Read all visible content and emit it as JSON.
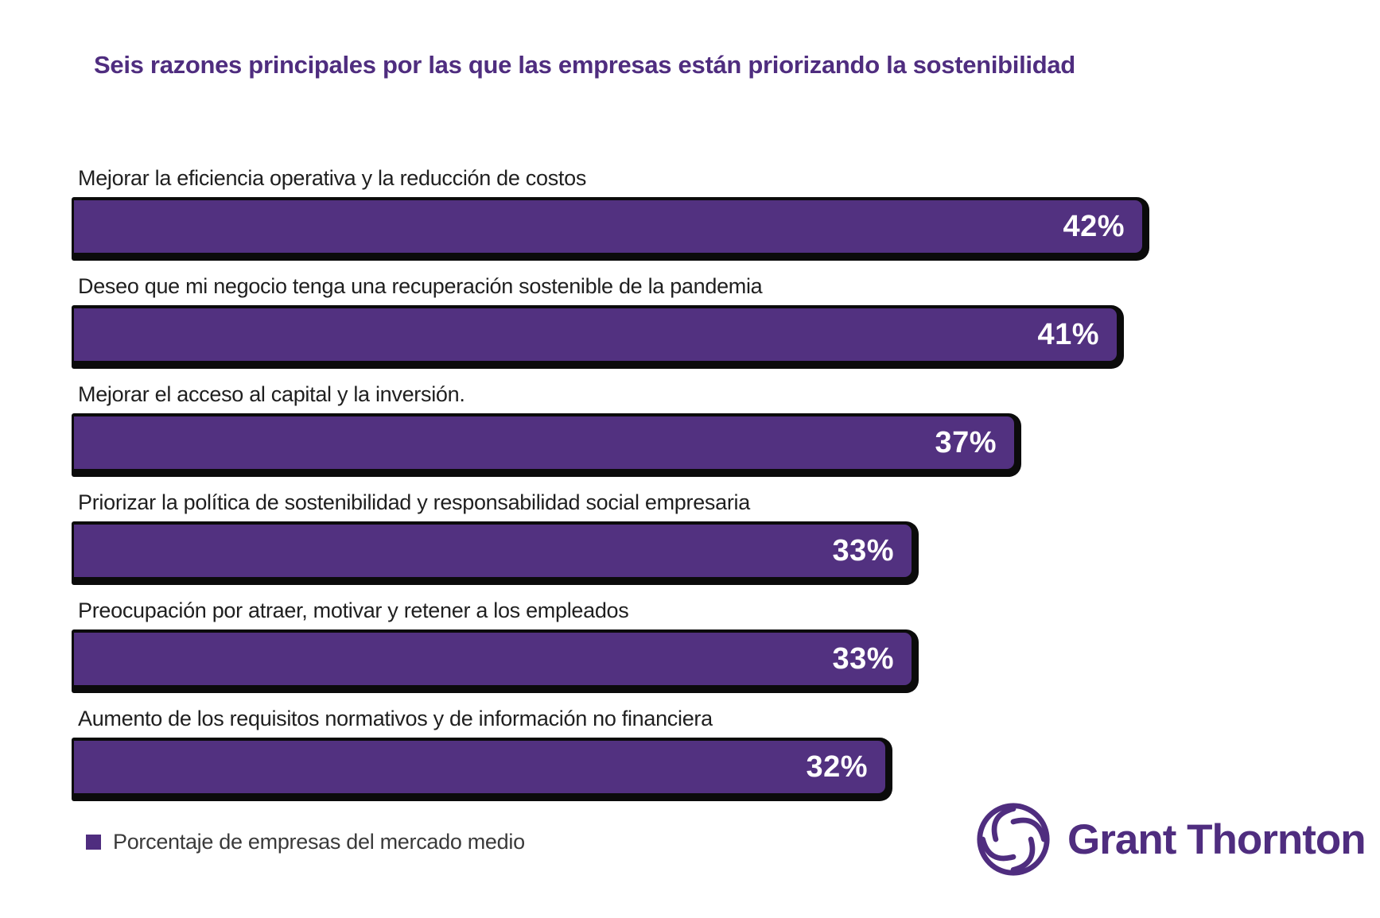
{
  "title": {
    "text": "Seis razones principales por las que las empresas están priorizando la sostenibilidad",
    "color": "#4F2D7F"
  },
  "chart_data": {
    "type": "bar",
    "orientation": "horizontal",
    "title": "Seis razones principales por las que las empresas están priorizando la sostenibilidad",
    "categories": [
      "Mejorar la eficiencia operativa y la reducción de costos",
      "Deseo que mi negocio tenga una recuperación sostenible de la pandemia",
      "Mejorar el acceso al capital y la inversión.",
      "Priorizar la política de sostenibilidad y responsabilidad social empresaria",
      "Preocupación por atraer, motivar y retener a los empleados",
      "Aumento de los requisitos normativos y de información no financiera"
    ],
    "values": [
      42,
      41,
      37,
      33,
      33,
      32
    ],
    "value_labels": [
      "42%",
      "41%",
      "37%",
      "33%",
      "33%",
      "32%"
    ],
    "xlim": [
      0,
      42
    ],
    "grid": false,
    "bar_color": "#523180",
    "bar_outline_color": "#0B0B0B",
    "value_label_color": "#FFFFFF",
    "category_label_color": "#1F1F1F",
    "legend_position": "bottom-left",
    "legend": [
      {
        "label": "Porcentaje de empresas del mercado medio",
        "color": "#4F2D7F"
      }
    ]
  },
  "legend": {
    "label": "Porcentaje de empresas del mercado medio",
    "swatch_color": "#4F2D7F"
  },
  "branding": {
    "name": "Grant Thornton",
    "color": "#4F2D7F",
    "icon": "grant-thornton-swirl-icon"
  }
}
